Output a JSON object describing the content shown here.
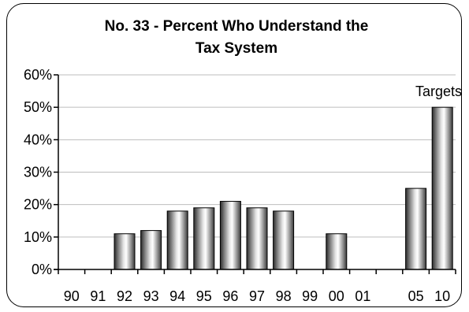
{
  "chart_data": {
    "type": "bar",
    "title_lines": [
      "No. 33 - Percent Who Understand the",
      "Tax System"
    ],
    "categories": [
      "90",
      "91",
      "92",
      "93",
      "94",
      "95",
      "96",
      "97",
      "98",
      "99",
      "00",
      "01",
      "05",
      "10"
    ],
    "values": [
      null,
      null,
      11,
      12,
      18,
      19,
      21,
      19,
      18,
      null,
      11,
      null,
      25,
      50
    ],
    "ylim": [
      0,
      60
    ],
    "y_ticks": [
      0,
      10,
      20,
      30,
      40,
      50,
      60
    ],
    "y_tick_labels": [
      "0%",
      "10%",
      "20%",
      "30%",
      "40%",
      "50%",
      "60%"
    ],
    "grid": true,
    "annotation": "Targets",
    "xlabel": "",
    "ylabel": ""
  }
}
